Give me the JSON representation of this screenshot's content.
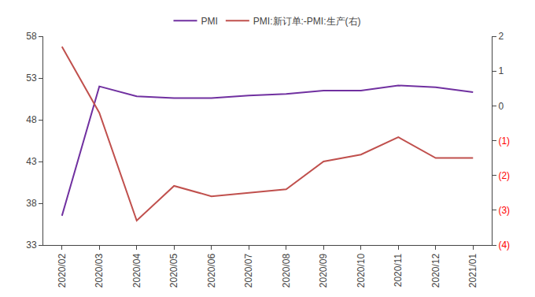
{
  "chart_data": {
    "type": "line",
    "categories": [
      "2020/02",
      "2020/03",
      "2020/04",
      "2020/05",
      "2020/06",
      "2020/07",
      "2020/08",
      "2020/09",
      "2020/10",
      "2020/11",
      "2020/12",
      "2021/01"
    ],
    "series": [
      {
        "name": "PMI",
        "color": "#7030a0",
        "values": [
          36.5,
          52.0,
          50.8,
          50.6,
          50.6,
          50.9,
          51.1,
          51.5,
          51.5,
          52.1,
          51.9,
          51.3
        ]
      },
      {
        "name": "PMI:新订单:-PMI:生产(右)",
        "color": "#c0504d",
        "axis": "y2",
        "values": [
          1.7,
          -0.2,
          -3.3,
          -2.3,
          -2.6,
          -2.5,
          -2.4,
          -1.6,
          -1.4,
          -0.9,
          -1.5,
          -1.5
        ]
      }
    ],
    "ylim": [
      33,
      58
    ],
    "yticks": [
      33,
      38,
      43,
      48,
      53,
      58
    ],
    "y2lim": [
      -4,
      2
    ],
    "y2ticks": [
      {
        "value": -4,
        "label": "(4)"
      },
      {
        "value": -3,
        "label": "(3)"
      },
      {
        "value": -2,
        "label": "(2)"
      },
      {
        "value": -1,
        "label": "(1)"
      },
      0,
      1,
      2
    ],
    "grid": false,
    "legend": "top"
  }
}
